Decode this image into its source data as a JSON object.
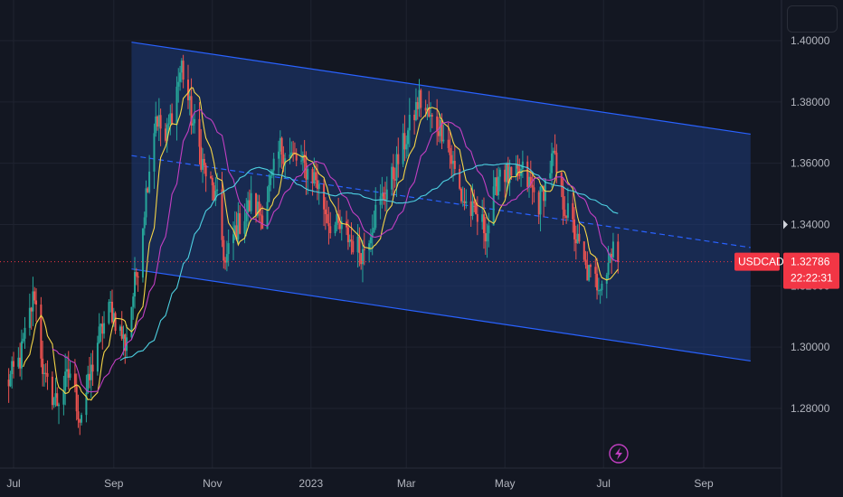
{
  "chart_data": {
    "type": "candlestick",
    "symbol": "USDCAD",
    "last_price": "1.32786",
    "countdown": "22:22:31",
    "x_ticks": [
      "Jul",
      "Sep",
      "Nov",
      "2023",
      "Mar",
      "May",
      "Jul",
      "Sep"
    ],
    "y_ticks": [
      "1.40000",
      "1.38000",
      "1.36000",
      "1.34000",
      "1.32000",
      "1.30000",
      "1.28000"
    ],
    "ylim": [
      1.263,
      1.409
    ],
    "grid": true,
    "price_path": [
      [
        "2022-06-27",
        1.288
      ],
      [
        "2022-07-05",
        1.296
      ],
      [
        "2022-07-14",
        1.318
      ],
      [
        "2022-07-20",
        1.289
      ],
      [
        "2022-07-28",
        1.282
      ],
      [
        "2022-08-05",
        1.292
      ],
      [
        "2022-08-11",
        1.277
      ],
      [
        "2022-08-16",
        1.287
      ],
      [
        "2022-08-22",
        1.302
      ],
      [
        "2022-08-30",
        1.313
      ],
      [
        "2022-09-08",
        1.301
      ],
      [
        "2022-09-16",
        1.327
      ],
      [
        "2022-09-22",
        1.355
      ],
      [
        "2022-09-27",
        1.376
      ],
      [
        "2022-10-03",
        1.367
      ],
      [
        "2022-10-13",
        1.392
      ],
      [
        "2022-10-19",
        1.375
      ],
      [
        "2022-10-27",
        1.358
      ],
      [
        "2022-11-04",
        1.347
      ],
      [
        "2022-11-09",
        1.327
      ],
      [
        "2022-11-15",
        1.338
      ],
      [
        "2022-11-25",
        1.347
      ],
      [
        "2022-12-02",
        1.343
      ],
      [
        "2022-12-13",
        1.365
      ],
      [
        "2022-12-23",
        1.361
      ],
      [
        "2023-01-04",
        1.355
      ],
      [
        "2023-01-12",
        1.341
      ],
      [
        "2023-01-20",
        1.338
      ],
      [
        "2023-02-02",
        1.331
      ],
      [
        "2023-02-10",
        1.344
      ],
      [
        "2023-02-20",
        1.355
      ],
      [
        "2023-03-02",
        1.37
      ],
      [
        "2023-03-09",
        1.381
      ],
      [
        "2023-03-16",
        1.374
      ],
      [
        "2023-03-24",
        1.371
      ],
      [
        "2023-04-04",
        1.349
      ],
      [
        "2023-04-12",
        1.343
      ],
      [
        "2023-04-20",
        1.338
      ],
      [
        "2023-04-28",
        1.359
      ],
      [
        "2023-05-05",
        1.354
      ],
      [
        "2023-05-12",
        1.357
      ],
      [
        "2023-05-22",
        1.347
      ],
      [
        "2023-05-31",
        1.362
      ],
      [
        "2023-06-05",
        1.349
      ],
      [
        "2023-06-12",
        1.339
      ],
      [
        "2023-06-20",
        1.325
      ],
      [
        "2023-06-27",
        1.321
      ],
      [
        "2023-07-03",
        1.325
      ],
      [
        "2023-07-07",
        1.336
      ],
      [
        "2023-07-10",
        1.328
      ]
    ],
    "channel": {
      "upper": [
        [
          "2022-09-12",
          1.3995
        ],
        [
          "2023-09-30",
          1.3695
        ]
      ],
      "lower": [
        [
          "2022-09-12",
          1.3255
        ],
        [
          "2023-09-30",
          1.2955
        ]
      ],
      "mid": [
        [
          "2022-09-12",
          1.3625
        ],
        [
          "2023-09-30",
          1.3325
        ]
      ]
    },
    "series": [
      {
        "color": "#f5d547",
        "period": 8
      },
      {
        "color": "#c23fc2",
        "period": 20
      },
      {
        "color": "#4dd0e1",
        "period": 50
      }
    ],
    "colors": {
      "up": "#26a69a",
      "down": "#ef5350",
      "channel": "#2962ff",
      "channel_fill": "#1e3a78",
      "price_tag": "#f23645",
      "grid": "#1f2330"
    },
    "icons": {
      "flash": "lightning-icon"
    }
  }
}
